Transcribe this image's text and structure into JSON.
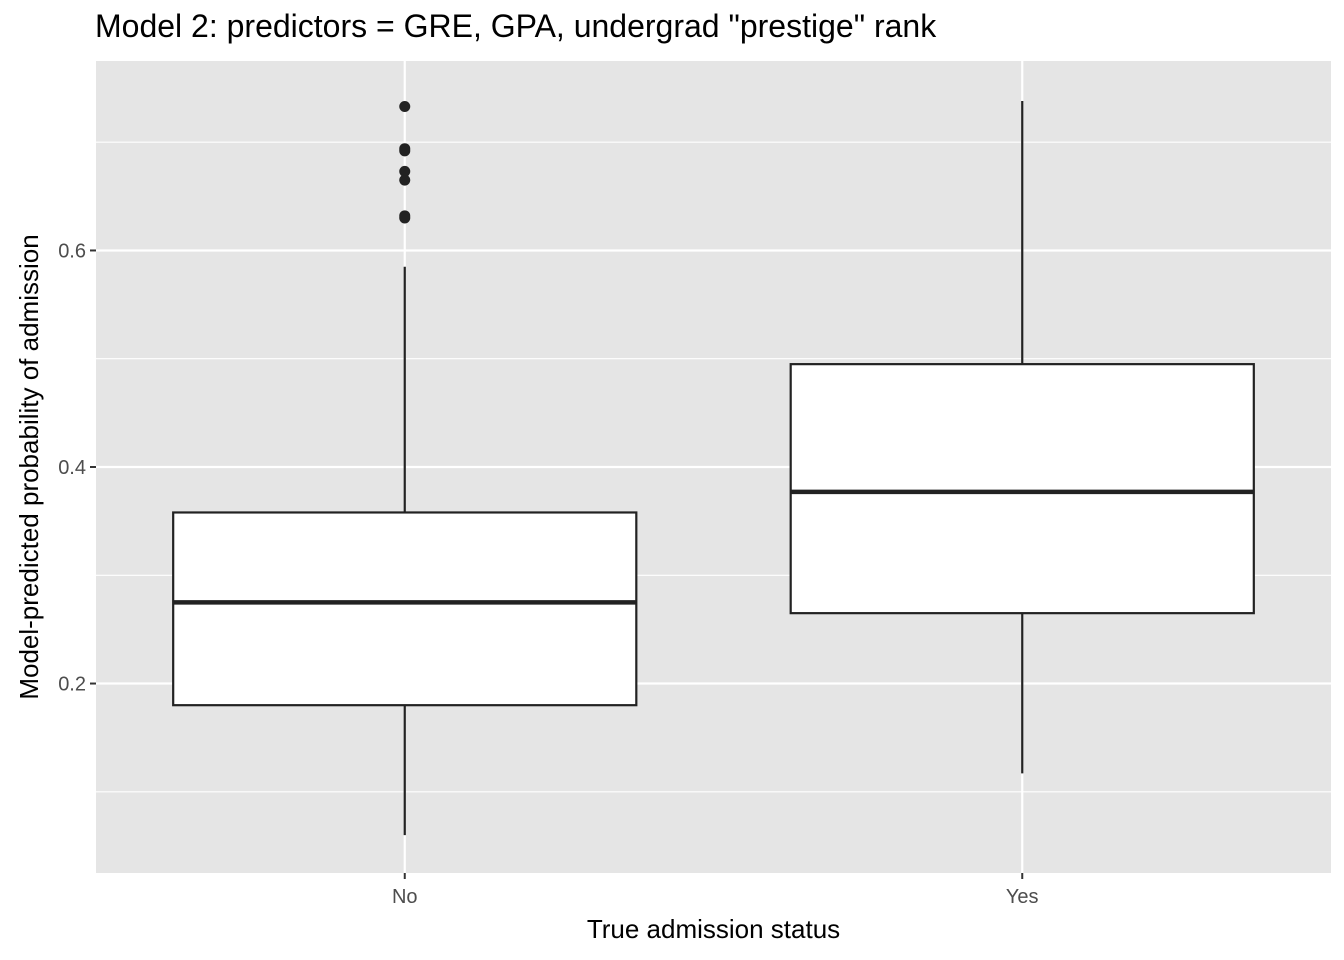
{
  "chart_data": {
    "type": "boxplot",
    "title": "Model 2: predictors = GRE, GPA, undergrad \"prestige\" rank",
    "xlabel": "True admission status",
    "ylabel": "Model-predicted probability of admission",
    "categories": [
      "No",
      "Yes"
    ],
    "y_ticks": [
      0.2,
      0.4,
      0.6
    ],
    "y_tick_labels": [
      "0.2",
      "0.4",
      "0.6"
    ],
    "ylim": [
      0.025,
      0.775
    ],
    "grid": true,
    "boxes": [
      {
        "category": "No",
        "whisker_low": 0.06,
        "q1": 0.18,
        "median": 0.275,
        "q3": 0.358,
        "whisker_high": 0.585,
        "outliers": [
          0.63,
          0.632,
          0.665,
          0.673,
          0.692,
          0.694,
          0.733
        ]
      },
      {
        "category": "Yes",
        "whisker_low": 0.117,
        "q1": 0.265,
        "median": 0.377,
        "q3": 0.495,
        "whisker_high": 0.738,
        "outliers": []
      }
    ],
    "colors": {
      "panel_background": "#e5e5e5",
      "grid": "#ffffff",
      "box_fill": "#ffffff",
      "box_stroke": "#222222",
      "tick_text": "#4d4d4d",
      "tick_mark": "#333333"
    }
  }
}
